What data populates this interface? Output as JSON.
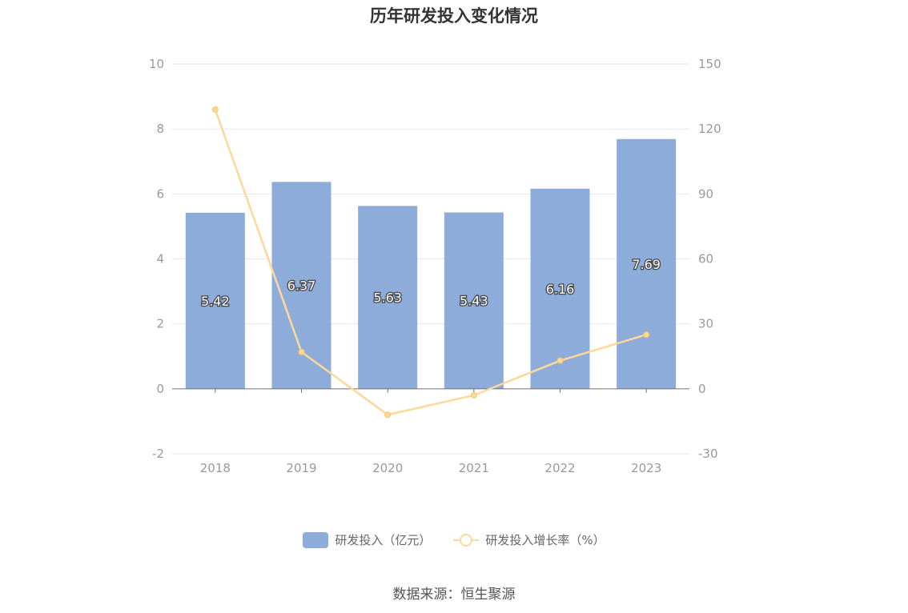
{
  "chart_data": {
    "type": "bar",
    "title": "历年研发投入变化情况",
    "categories": [
      "2018",
      "2019",
      "2020",
      "2021",
      "2022",
      "2023"
    ],
    "series": [
      {
        "name": "研发投入（亿元）",
        "type": "bar",
        "axis": "left",
        "values": [
          5.42,
          6.37,
          5.63,
          5.43,
          6.16,
          7.69
        ],
        "labels": [
          "5.42",
          "6.37",
          "5.63",
          "5.43",
          "6.16",
          "7.69"
        ],
        "color": "#8eacd9"
      },
      {
        "name": "研发投入增长率（%）",
        "type": "line",
        "axis": "right",
        "values": [
          129,
          17,
          -12,
          -3,
          13,
          25
        ],
        "color": "#fcd99a"
      }
    ],
    "y_left": {
      "min": -2,
      "max": 10,
      "ticks": [
        "-2",
        "0",
        "2",
        "4",
        "6",
        "8",
        "10"
      ]
    },
    "y_right": {
      "min": -30,
      "max": 150,
      "ticks": [
        "-30",
        "0",
        "30",
        "60",
        "90",
        "120",
        "150"
      ]
    },
    "grid": true,
    "legend_position": "bottom-center",
    "source": "数据来源：恒生聚源"
  }
}
